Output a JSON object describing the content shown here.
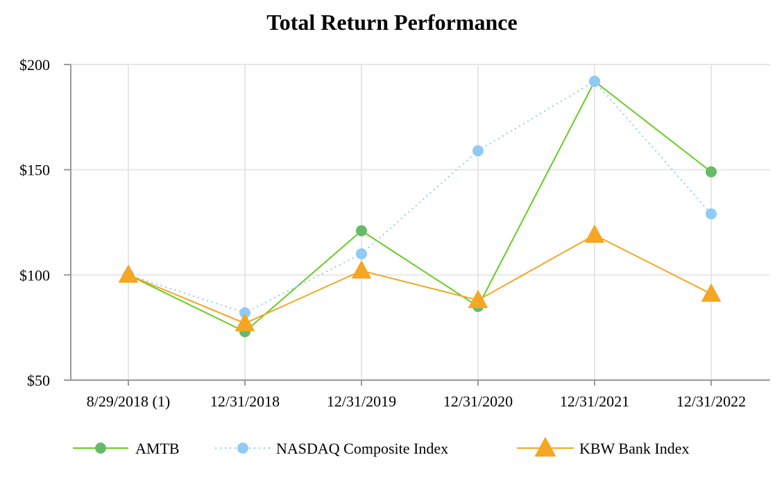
{
  "chart_data": {
    "type": "line",
    "title": "Total Return Performance",
    "xlabel": "",
    "ylabel": "",
    "categories": [
      "8/29/2018 (1)",
      "12/31/2018",
      "12/31/2019",
      "12/31/2020",
      "12/31/2021",
      "12/31/2022"
    ],
    "ylim": [
      50,
      200
    ],
    "yticks": [
      50,
      100,
      150,
      200
    ],
    "ytick_labels": [
      "$50",
      "$100",
      "$150",
      "$200"
    ],
    "grid": true,
    "legend_position": "bottom",
    "series": [
      {
        "name": "AMTB",
        "values": [
          100,
          73,
          121,
          85,
          192,
          149
        ],
        "color": "#66cc22",
        "marker_color": "#66bb6a",
        "line_style": "solid",
        "marker": "circle"
      },
      {
        "name": "NASDAQ Composite Index",
        "values": [
          100,
          82,
          110,
          159,
          192,
          129
        ],
        "color": "#90caf9",
        "marker_color": "#90caf9",
        "line_style": "dotted",
        "marker": "circle"
      },
      {
        "name": "KBW Bank Index",
        "values": [
          100,
          77,
          102,
          88,
          119,
          91
        ],
        "color": "#f5a623",
        "marker_color": "#f5a623",
        "line_style": "solid",
        "marker": "triangle"
      }
    ]
  }
}
